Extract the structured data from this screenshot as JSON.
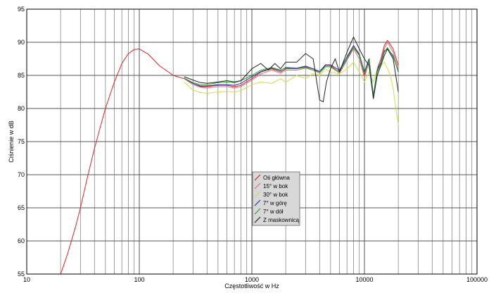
{
  "chart_data": {
    "type": "line",
    "xlabel": "Częstotliwość w Hz",
    "ylabel": "Ciśnienie w dB",
    "xscale": "log",
    "xlim": [
      10,
      100000
    ],
    "ylim": [
      55,
      95
    ],
    "x_ticks": [
      10,
      100,
      1000,
      10000,
      100000
    ],
    "x_tick_labels": [
      "10",
      "100",
      "1000",
      "10000",
      "100000"
    ],
    "y_ticks": [
      55,
      60,
      65,
      70,
      75,
      80,
      85,
      90,
      95
    ],
    "y_tick_labels": [
      "55",
      "60",
      "65",
      "70",
      "75",
      "80",
      "85",
      "90",
      "95"
    ],
    "grid": true,
    "legend_position": "center",
    "series": [
      {
        "name": "Oś główna",
        "color": "#dd2222",
        "x": [
          20,
          23,
          27,
          30,
          35,
          40,
          50,
          60,
          70,
          80,
          90,
          100,
          120,
          150,
          200,
          250,
          300,
          350,
          400,
          500,
          600,
          700,
          800,
          1000,
          1200,
          1500,
          1800,
          2000,
          2500,
          3000,
          3500,
          4000,
          4500,
          5000,
          6000,
          7000,
          8000,
          9000,
          10000,
          11000,
          12000,
          13000,
          14000,
          15000,
          16000,
          18000,
          20000
        ],
        "y": [
          55,
          58,
          62,
          65,
          70,
          74,
          80,
          84,
          86.8,
          88.3,
          88.9,
          89,
          88.2,
          86.5,
          85,
          84.5,
          83.8,
          83.3,
          83.3,
          83.5,
          83.5,
          83.3,
          83.5,
          84.5,
          85.5,
          86,
          85.5,
          86,
          86,
          86.3,
          86,
          85.5,
          86.5,
          86.5,
          85.5,
          87.5,
          89.5,
          88,
          85,
          87.5,
          81.5,
          86,
          87.5,
          89.5,
          90.3,
          89,
          86.5
        ]
      },
      {
        "name": "15° w bok",
        "color": "#e07080",
        "x": [
          250,
          300,
          350,
          400,
          500,
          600,
          700,
          800,
          1000,
          1200,
          1500,
          1800,
          2000,
          2500,
          3000,
          3500,
          4000,
          4500,
          5000,
          6000,
          7000,
          8000,
          9000,
          10000,
          11000,
          12000,
          13000,
          14000,
          15000,
          16000,
          18000,
          20000
        ],
        "y": [
          84.5,
          83.6,
          83.2,
          83.1,
          83.3,
          83.3,
          83.1,
          83.3,
          84.3,
          85.2,
          85.8,
          85.3,
          85.8,
          85.8,
          86.1,
          85.8,
          85.3,
          86.3,
          86.3,
          85.3,
          87.3,
          89,
          87.5,
          84.7,
          87,
          81.5,
          85.5,
          87,
          89,
          90,
          88.5,
          86
        ]
      },
      {
        "name": "30° w bok",
        "color": "#d0e040",
        "x": [
          250,
          300,
          350,
          400,
          500,
          600,
          700,
          800,
          1000,
          1200,
          1500,
          1800,
          2000,
          2500,
          3000,
          3500,
          4000,
          4500,
          5000,
          6000,
          7000,
          8000,
          9000,
          10000,
          11000,
          12000,
          13000,
          14000,
          15000,
          16000,
          17000,
          18000,
          19000,
          20000
        ],
        "y": [
          84,
          82.8,
          82.4,
          82.3,
          82.5,
          82.6,
          82.5,
          82.7,
          83.6,
          84,
          83.8,
          84.5,
          84,
          85,
          84.5,
          85.3,
          85,
          86,
          85.5,
          85.2,
          86,
          87,
          85.5,
          84,
          85.5,
          84,
          86,
          86.5,
          87,
          86,
          85,
          83,
          80,
          77.5
        ]
      },
      {
        "name": "7° w górę",
        "color": "#2233aa",
        "x": [
          250,
          300,
          350,
          400,
          500,
          600,
          700,
          800,
          1000,
          1200,
          1500,
          1800,
          2000,
          2500,
          3000,
          3500,
          4000,
          4500,
          5000,
          6000,
          7000,
          8000,
          9000,
          10000,
          11000,
          12000,
          13000,
          14000,
          15000,
          16000,
          18000,
          20000
        ],
        "y": [
          84.6,
          83.8,
          83.4,
          83.4,
          83.6,
          83.6,
          83.5,
          83.8,
          84.8,
          85.6,
          86.1,
          85.7,
          86.2,
          86.1,
          86.4,
          86,
          85.6,
          86.6,
          86.6,
          85.8,
          87.8,
          89.5,
          88.2,
          85.5,
          87.5,
          82,
          85.8,
          87,
          88.7,
          89,
          88,
          85.5
        ]
      },
      {
        "name": "7° w dół",
        "color": "#22aa22",
        "x": [
          250,
          300,
          350,
          400,
          500,
          600,
          700,
          800,
          1000,
          1200,
          1500,
          1800,
          2000,
          2500,
          3000,
          3500,
          4000,
          4500,
          5000,
          6000,
          7000,
          8000,
          9000,
          10000,
          11000,
          12000,
          13000,
          14000,
          15000,
          16000,
          18000,
          20000
        ],
        "y": [
          84.6,
          83.9,
          83.6,
          83.6,
          83.9,
          84,
          83.9,
          84.2,
          85,
          85.8,
          86.2,
          85.8,
          86.1,
          86,
          86.2,
          85.8,
          85.5,
          86.3,
          86.3,
          85.6,
          87.5,
          89.2,
          88,
          85.3,
          87.2,
          81.8,
          85.5,
          86.8,
          88.5,
          89.2,
          87.8,
          85.7
        ]
      },
      {
        "name": "Z maskownicą",
        "color": "#222222",
        "x": [
          250,
          300,
          350,
          400,
          500,
          600,
          700,
          800,
          1000,
          1200,
          1400,
          1600,
          1800,
          2000,
          2500,
          3000,
          3500,
          4000,
          4300,
          4600,
          5000,
          5500,
          6000,
          7000,
          8000,
          9000,
          10000,
          11000,
          12000,
          13000,
          14000,
          15000,
          16000,
          18000,
          20000
        ],
        "y": [
          84.8,
          84.3,
          83.9,
          83.8,
          84,
          84.2,
          84,
          84.2,
          86,
          86.8,
          85.8,
          86.8,
          86,
          87,
          87,
          88.3,
          87.5,
          81.3,
          81,
          84,
          86,
          87.5,
          85.5,
          88.5,
          90.8,
          89,
          87.5,
          86.5,
          81.5,
          85,
          86.5,
          88,
          89,
          87.5,
          82.5
        ]
      }
    ]
  }
}
